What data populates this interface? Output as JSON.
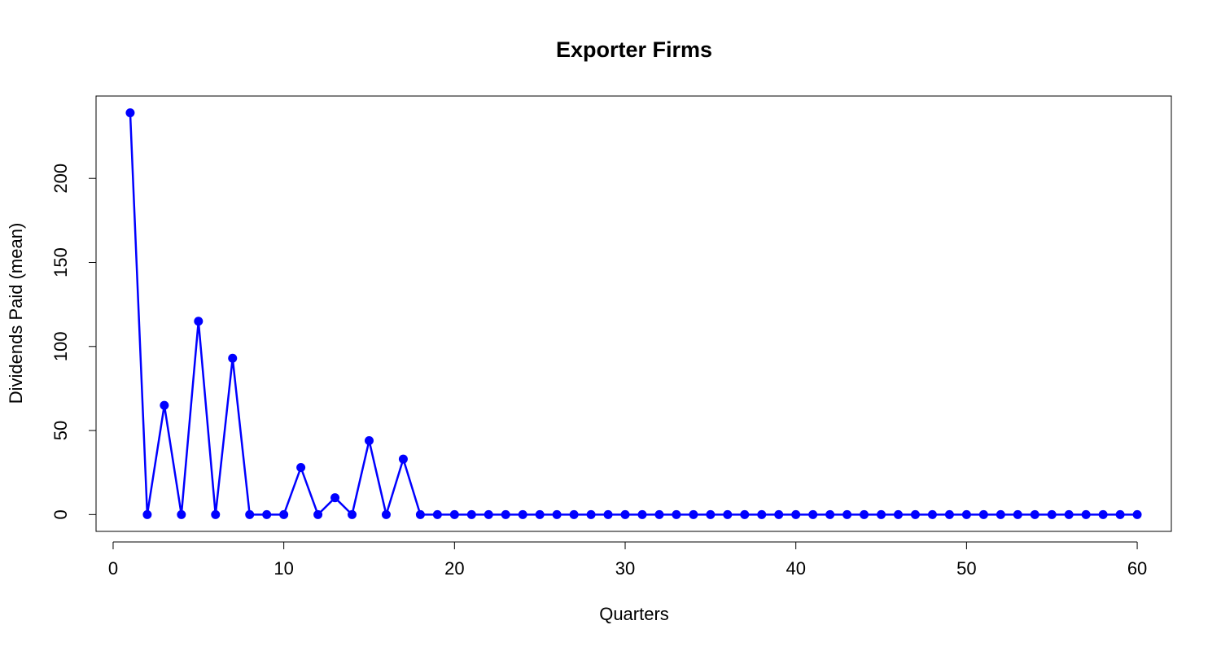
{
  "chart_data": {
    "type": "line",
    "title": "Exporter Firms",
    "xlabel": "Quarters",
    "ylabel": "Dividends Paid (mean)",
    "xlim": [
      -1,
      62
    ],
    "ylim": [
      -10,
      249
    ],
    "x_ticks": [
      0,
      10,
      20,
      30,
      40,
      50,
      60
    ],
    "y_ticks": [
      0,
      50,
      100,
      150,
      200
    ],
    "grid": false,
    "color": "#0000FF",
    "series": [
      {
        "x": [
          1,
          2,
          3,
          4,
          5,
          6,
          7,
          8,
          9,
          10,
          11,
          12,
          13,
          14,
          15,
          16,
          17,
          18,
          19,
          20,
          21,
          22,
          23,
          24,
          25,
          26,
          27,
          28,
          29,
          30,
          31,
          32,
          33,
          34,
          35,
          36,
          37,
          38,
          39,
          40,
          41,
          42,
          43,
          44,
          45,
          46,
          47,
          48,
          49,
          50,
          51,
          52,
          53,
          54,
          55,
          56,
          57,
          58,
          59,
          60
        ],
        "values": [
          239,
          0,
          65,
          0,
          115,
          0,
          93,
          0,
          0,
          0,
          28,
          0,
          10,
          0,
          44,
          0,
          33,
          0,
          0,
          0,
          0,
          0,
          0,
          0,
          0,
          0,
          0,
          0,
          0,
          0,
          0,
          0,
          0,
          0,
          0,
          0,
          0,
          0,
          0,
          0,
          0,
          0,
          0,
          0,
          0,
          0,
          0,
          0,
          0,
          0,
          0,
          0,
          0,
          0,
          0,
          0,
          0,
          0,
          0,
          0
        ]
      }
    ]
  }
}
